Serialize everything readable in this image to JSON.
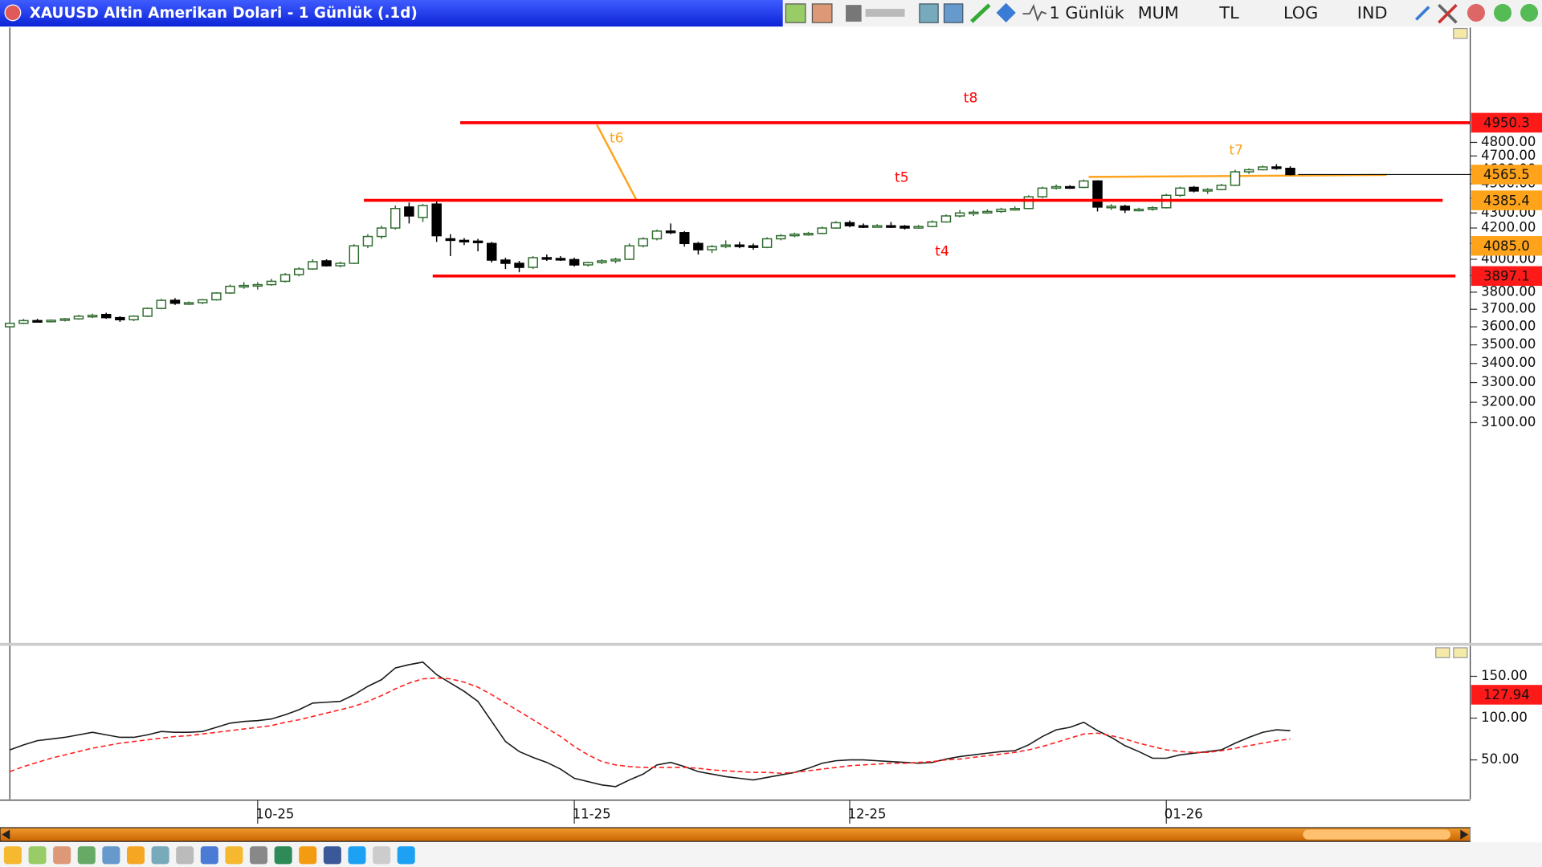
{
  "window": {
    "title": "XAUUSD Altin Amerikan Dolari - 1 Günlük (.1d)",
    "buttons": [
      "1 Günlük",
      "MUM",
      "TL",
      "LOG",
      "IND"
    ]
  },
  "chart_data": [
    {
      "type": "candlestick",
      "log_scale": true,
      "up_color": "#2e6b2e",
      "down_color": "#000000",
      "categories": [
        null,
        null,
        null,
        null,
        null,
        null,
        null,
        null,
        null,
        null,
        null,
        null,
        null,
        null,
        null,
        null,
        null,
        null,
        "10-25",
        null,
        null,
        null,
        null,
        null,
        null,
        null,
        null,
        null,
        null,
        null,
        null,
        null,
        null,
        null,
        null,
        null,
        null,
        null,
        null,
        null,
        null,
        "11-25",
        null,
        null,
        null,
        null,
        null,
        null,
        null,
        null,
        null,
        null,
        null,
        null,
        null,
        null,
        null,
        null,
        null,
        null,
        null,
        "12-25",
        null,
        null,
        null,
        null,
        null,
        null,
        null,
        null,
        null,
        null,
        null,
        null,
        null,
        null,
        null,
        null,
        null,
        null,
        null,
        null,
        null,
        null,
        "01-26",
        null,
        null,
        null,
        null,
        null,
        null,
        null,
        null,
        null
      ],
      "open": [
        3600,
        3620,
        3635,
        3632,
        3637,
        3645,
        3660,
        3670,
        3652,
        3640,
        3660,
        3705,
        3752,
        3735,
        3738,
        3755,
        3795,
        3835,
        3840,
        3845,
        3865,
        3905,
        3940,
        3990,
        3960,
        3975,
        4085,
        4145,
        4200,
        4340,
        4270,
        4360,
        4130,
        4120,
        4115,
        4100,
        3995,
        3975,
        3950,
        4010,
        4005,
        3998,
        3965,
        3980,
        3990,
        4000,
        4085,
        4130,
        4180,
        4170,
        4100,
        4060,
        4080,
        4090,
        4085,
        4075,
        4130,
        4150,
        4160,
        4165,
        4200,
        4235,
        4215,
        4212,
        4215,
        4212,
        4200,
        4210,
        4240,
        4280,
        4300,
        4305,
        4310,
        4325,
        4330,
        4410,
        4470,
        4480,
        4475,
        4520,
        4340,
        4345,
        4320,
        4325,
        4335,
        4420,
        4475,
        4450,
        4460,
        4490,
        4585,
        4600,
        4620,
        4610
      ],
      "high": [
        3625,
        3645,
        3645,
        3642,
        3650,
        3668,
        3675,
        3680,
        3660,
        3665,
        3710,
        3760,
        3765,
        3745,
        3760,
        3800,
        3845,
        3860,
        3860,
        3880,
        3915,
        3950,
        4000,
        4000,
        3985,
        4095,
        4160,
        4215,
        4350,
        4370,
        4360,
        4380,
        4160,
        4135,
        4130,
        4110,
        4010,
        3990,
        4020,
        4030,
        4020,
        4010,
        3985,
        4000,
        4010,
        4100,
        4140,
        4190,
        4230,
        4180,
        4110,
        4090,
        4120,
        4110,
        4100,
        4140,
        4160,
        4170,
        4175,
        4210,
        4245,
        4250,
        4230,
        4225,
        4240,
        4220,
        4220,
        4250,
        4290,
        4320,
        4320,
        4325,
        4335,
        4345,
        4420,
        4480,
        4495,
        4490,
        4530,
        4525,
        4360,
        4355,
        4335,
        4345,
        4430,
        4480,
        4485,
        4470,
        4500,
        4600,
        4610,
        4630,
        4640,
        4625
      ],
      "low": [
        3595,
        3615,
        3625,
        3625,
        3630,
        3640,
        3650,
        3645,
        3628,
        3632,
        3655,
        3700,
        3725,
        3725,
        3730,
        3750,
        3790,
        3820,
        3815,
        3838,
        3858,
        3895,
        3935,
        3955,
        3950,
        3970,
        4070,
        4130,
        4190,
        4230,
        4240,
        4110,
        4020,
        4090,
        4050,
        3980,
        3940,
        3920,
        3940,
        3990,
        3990,
        3955,
        3955,
        3970,
        3975,
        3995,
        4075,
        4120,
        4160,
        4080,
        4030,
        4040,
        4070,
        4070,
        4060,
        4070,
        4120,
        4140,
        4150,
        4160,
        4195,
        4205,
        4200,
        4205,
        4200,
        4190,
        4195,
        4205,
        4235,
        4270,
        4280,
        4295,
        4300,
        4315,
        4325,
        4400,
        4460,
        4465,
        4470,
        4310,
        4320,
        4300,
        4310,
        4315,
        4330,
        4410,
        4440,
        4430,
        4455,
        4485,
        4570,
        4595,
        4600,
        4560
      ],
      "close": [
        3620,
        3635,
        3632,
        3637,
        3645,
        3660,
        3665,
        3652,
        3640,
        3660,
        3705,
        3752,
        3735,
        3738,
        3755,
        3795,
        3835,
        3840,
        3845,
        3865,
        3905,
        3940,
        3985,
        3960,
        3975,
        4085,
        4145,
        4200,
        4330,
        4280,
        4350,
        4150,
        4120,
        4115,
        4110,
        3995,
        3975,
        3950,
        4010,
        4005,
        3998,
        3965,
        3980,
        3990,
        4000,
        4085,
        4130,
        4180,
        4170,
        4100,
        4060,
        4080,
        4090,
        4085,
        4075,
        4130,
        4150,
        4160,
        4165,
        4200,
        4235,
        4215,
        4212,
        4215,
        4212,
        4200,
        4210,
        4240,
        4280,
        4300,
        4305,
        4310,
        4325,
        4330,
        4410,
        4470,
        4480,
        4475,
        4520,
        4340,
        4345,
        4320,
        4325,
        4335,
        4420,
        4470,
        4450,
        4460,
        4490,
        4585,
        4600,
        4620,
        4610,
        4565.5
      ],
      "ylim": [
        2195,
        5743
      ],
      "yticks": [
        {
          "value": 3100,
          "label": "3100.00"
        },
        {
          "value": 3200,
          "label": "3200.00"
        },
        {
          "value": 3300,
          "label": "3300.00"
        },
        {
          "value": 3400,
          "label": "3400.00"
        },
        {
          "value": 3500,
          "label": "3500.00"
        },
        {
          "value": 3600,
          "label": "3600.00"
        },
        {
          "value": 3700,
          "label": "3700.00"
        },
        {
          "value": 3800,
          "label": "3800.00"
        },
        {
          "value": 3900,
          "label": "3900.00"
        },
        {
          "value": 4000,
          "label": "4000.00"
        },
        {
          "value": 4100,
          "label": "4100.00"
        },
        {
          "value": 4200,
          "label": "4200.00"
        },
        {
          "value": 4300,
          "label": "4300.00"
        },
        {
          "value": 4400,
          "label": "4400.00"
        },
        {
          "value": 4500,
          "label": "4500.00"
        },
        {
          "value": 4600,
          "label": "4600.00"
        },
        {
          "value": 4700,
          "label": "4700.00"
        },
        {
          "value": 4800,
          "label": "4800.00"
        }
      ],
      "levels": [
        {
          "value": 4950.3,
          "color": "#ff1a1a",
          "line_color": "#ff0000"
        },
        {
          "value": 4565.5,
          "color": "#ffa31a",
          "line_color": "#000000"
        },
        {
          "value": 4385.4,
          "color": "#ffa31a",
          "line_color": "#ff0000"
        },
        {
          "value": 4085,
          "label": "4085.0",
          "color": "#ffa31a"
        },
        {
          "value": 3897.1,
          "color": "#ff1a1a",
          "line_color": "#ff0000"
        }
      ],
      "annotations": [
        {
          "text": "t8",
          "color": "#ff0000"
        },
        {
          "text": "t6",
          "color": "#ffa31a"
        },
        {
          "text": "t5",
          "color": "#ff0000"
        },
        {
          "text": "t4",
          "color": "#ff0000"
        },
        {
          "text": "t7",
          "color": "#ffa31a"
        }
      ]
    },
    {
      "type": "line",
      "ylim": [
        3,
        186.5
      ],
      "yticks": [
        {
          "value": 150,
          "label": "150.00"
        },
        {
          "value": 100,
          "label": "100.00"
        },
        {
          "value": 50,
          "label": "50.00"
        }
      ],
      "last_value": 127.94,
      "last_color": "#ff1a1a",
      "series": [
        {
          "color": "#1a1a1a",
          "values": [
            62,
            68,
            73,
            75,
            77,
            80,
            83,
            80,
            77,
            77,
            80,
            84,
            83,
            83,
            84,
            89,
            94,
            96,
            97,
            99,
            104,
            110,
            118,
            119,
            120,
            128,
            138,
            146,
            160,
            164,
            167,
            152,
            142,
            132,
            120,
            96,
            72,
            60,
            53,
            47,
            39,
            28,
            24,
            20,
            18,
            26,
            33,
            44,
            47,
            42,
            36,
            33,
            30,
            28,
            26,
            29,
            32,
            35,
            40,
            46,
            49,
            50,
            50,
            49,
            48,
            47,
            46,
            47,
            51,
            54,
            56,
            58,
            60,
            61,
            68,
            78,
            86,
            89,
            95,
            85,
            77,
            67,
            60,
            52,
            52,
            56,
            58,
            60,
            62,
            70,
            77,
            83,
            86,
            85
          ]
        },
        {
          "color": "#ff2020",
          "dashed": true,
          "values": [
            36,
            42,
            47,
            52,
            56,
            60,
            64,
            67,
            70,
            72,
            74,
            76,
            78,
            79,
            81,
            83,
            85,
            87,
            89,
            91,
            95,
            98,
            102,
            106,
            110,
            114,
            120,
            127,
            135,
            142,
            147,
            148,
            147,
            143,
            137,
            128,
            118,
            108,
            98,
            88,
            78,
            66,
            56,
            48,
            44,
            42,
            41,
            41,
            41,
            41,
            40,
            38,
            37,
            36,
            35,
            35,
            34,
            35,
            37,
            39,
            41,
            43,
            44,
            45,
            46,
            46,
            47,
            48,
            50,
            51,
            53,
            55,
            57,
            59,
            62,
            66,
            71,
            76,
            81,
            82,
            79,
            75,
            70,
            66,
            62,
            60,
            59,
            59,
            61,
            64,
            67,
            70,
            73,
            75
          ]
        }
      ]
    }
  ]
}
